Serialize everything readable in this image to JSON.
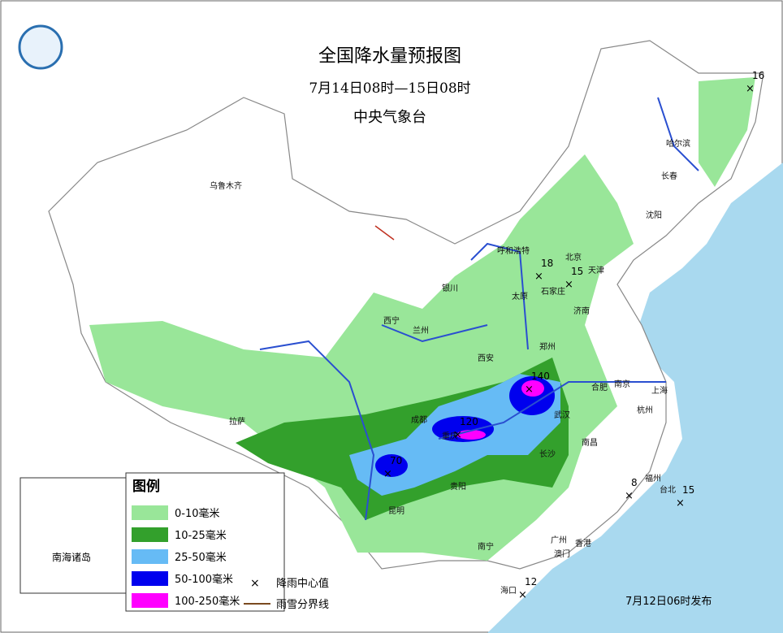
{
  "header": {
    "title": "全国降水量预报图",
    "period": "7月14日08时—15日08时",
    "issuer": "中央气象台"
  },
  "legend": {
    "title": "图例",
    "items": [
      {
        "label": "0-10毫米",
        "color": "#99e699"
      },
      {
        "label": "10-25毫米",
        "color": "#33a02c"
      },
      {
        "label": "25-50毫米",
        "color": "#66bbf5"
      },
      {
        "label": "50-100毫米",
        "color": "#0000ee"
      },
      {
        "label": "100-250毫米",
        "color": "#ff00ff"
      }
    ],
    "symbols": [
      {
        "label": "降雨中心值"
      },
      {
        "label": "雨雪分界线"
      }
    ]
  },
  "cities": [
    "乌鲁木齐",
    "哈尔滨",
    "长春",
    "沈阳",
    "呼和浩特",
    "北京",
    "天津",
    "石家庄",
    "太原",
    "济南",
    "银川",
    "西宁",
    "兰州",
    "西安",
    "郑州",
    "合肥",
    "南京",
    "上海",
    "杭州",
    "武汉",
    "成都",
    "重庆",
    "长沙",
    "南昌",
    "福州",
    "台北",
    "贵阳",
    "昆明",
    "拉萨",
    "南宁",
    "广州",
    "香港",
    "澳门",
    "海口"
  ],
  "rain_centers": [
    16,
    18,
    15,
    140,
    120,
    70,
    8,
    15,
    12
  ],
  "inset_label": "南海诸岛",
  "footer": "7月12日06时发布"
}
